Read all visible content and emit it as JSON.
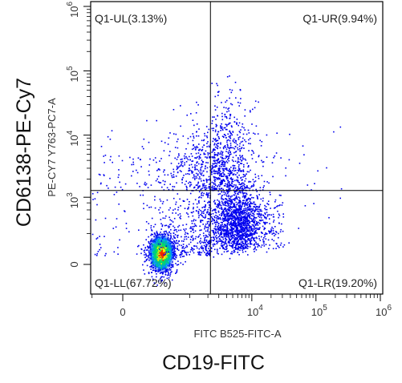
{
  "chart_data": {
    "type": "scatter",
    "plot_kind": "flow-cytometry density dot plot",
    "x_axis": {
      "title": "FITC B525-FITC-A",
      "outer_title": "CD19-FITC",
      "scale": "biexponential",
      "range": [
        -300,
        1000000
      ],
      "ticks": [
        {
          "value": 0,
          "label": "0"
        },
        {
          "value": 10000,
          "label": "10",
          "exponent": "4"
        },
        {
          "value": 100000,
          "label": "10",
          "exponent": "5"
        },
        {
          "value": 1000000,
          "label": "10",
          "exponent": "6"
        }
      ]
    },
    "y_axis": {
      "title": "PE-CY7 Y763-PC7-A",
      "outer_title": "CD6138-PE-Cy7",
      "scale": "biexponential",
      "range": [
        -300,
        1000000
      ],
      "ticks": [
        {
          "value": 0,
          "label": "0"
        },
        {
          "value": 1000,
          "label": "10",
          "exponent": "3"
        },
        {
          "value": 10000,
          "label": "10",
          "exponent": "4"
        },
        {
          "value": 100000,
          "label": "10",
          "exponent": "5"
        },
        {
          "value": 1000000,
          "label": "10",
          "exponent": "6"
        }
      ]
    },
    "gate": {
      "x": 2200,
      "y": 1300
    },
    "quadrants": [
      {
        "id": "UL",
        "label": "Q1-UL(3.13%)",
        "percent": 3.13
      },
      {
        "id": "UR",
        "label": "Q1-UR(9.94%)",
        "percent": 9.94
      },
      {
        "id": "LL",
        "label": "Q1-LL(67.72%)",
        "percent": 67.72
      },
      {
        "id": "LR",
        "label": "Q1-LR(19.20%)",
        "percent": 19.2
      }
    ],
    "grid": false,
    "colors": {
      "low_density": "#0000ee",
      "mid_density": "#00dd66",
      "high_density": "#ffee00",
      "peak_density": "#ee2200"
    }
  }
}
